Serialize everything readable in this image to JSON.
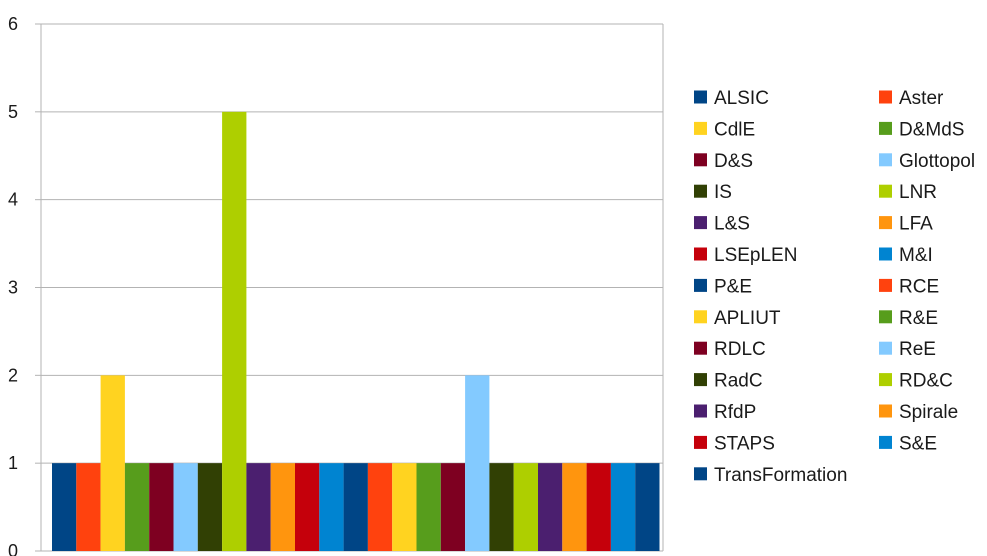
{
  "chart_data": {
    "type": "bar",
    "title": "",
    "xlabel": "",
    "ylabel": "",
    "ylim": [
      0,
      6
    ],
    "yticks": [
      0,
      1,
      2,
      3,
      4,
      5,
      6
    ],
    "grid": true,
    "legend_position": "right",
    "series": [
      {
        "name": "ALSIC",
        "value": 1,
        "color": "#004586"
      },
      {
        "name": "Aster",
        "value": 1,
        "color": "#ff420e"
      },
      {
        "name": "CdlE",
        "value": 2,
        "color": "#ffd320"
      },
      {
        "name": "D&MdS",
        "value": 1,
        "color": "#579d1c"
      },
      {
        "name": "D&S",
        "value": 1,
        "color": "#7e0021"
      },
      {
        "name": "Glottopol",
        "value": 1,
        "color": "#83caff"
      },
      {
        "name": "IS",
        "value": 1,
        "color": "#314004"
      },
      {
        "name": "LNR",
        "value": 5,
        "color": "#aecf00"
      },
      {
        "name": "L&S",
        "value": 1,
        "color": "#4b1f6f"
      },
      {
        "name": "LFA",
        "value": 1,
        "color": "#ff950e"
      },
      {
        "name": "LSEpLEN",
        "value": 1,
        "color": "#c5000b"
      },
      {
        "name": "M&I",
        "value": 1,
        "color": "#0084d1"
      },
      {
        "name": "P&E",
        "value": 1,
        "color": "#004586"
      },
      {
        "name": "RCE",
        "value": 1,
        "color": "#ff420e"
      },
      {
        "name": "APLIUT",
        "value": 1,
        "color": "#ffd320"
      },
      {
        "name": "R&E",
        "value": 1,
        "color": "#579d1c"
      },
      {
        "name": "RDLC",
        "value": 1,
        "color": "#7e0021"
      },
      {
        "name": "ReE",
        "value": 2,
        "color": "#83caff"
      },
      {
        "name": "RadC",
        "value": 1,
        "color": "#314004"
      },
      {
        "name": "RD&C",
        "value": 1,
        "color": "#aecf00"
      },
      {
        "name": "RfdP",
        "value": 1,
        "color": "#4b1f6f"
      },
      {
        "name": "Spirale",
        "value": 1,
        "color": "#ff950e"
      },
      {
        "name": "STAPS",
        "value": 1,
        "color": "#c5000b"
      },
      {
        "name": "S&E",
        "value": 1,
        "color": "#0084d1"
      },
      {
        "name": "TransFormation",
        "value": 1,
        "color": "#004586"
      }
    ]
  }
}
